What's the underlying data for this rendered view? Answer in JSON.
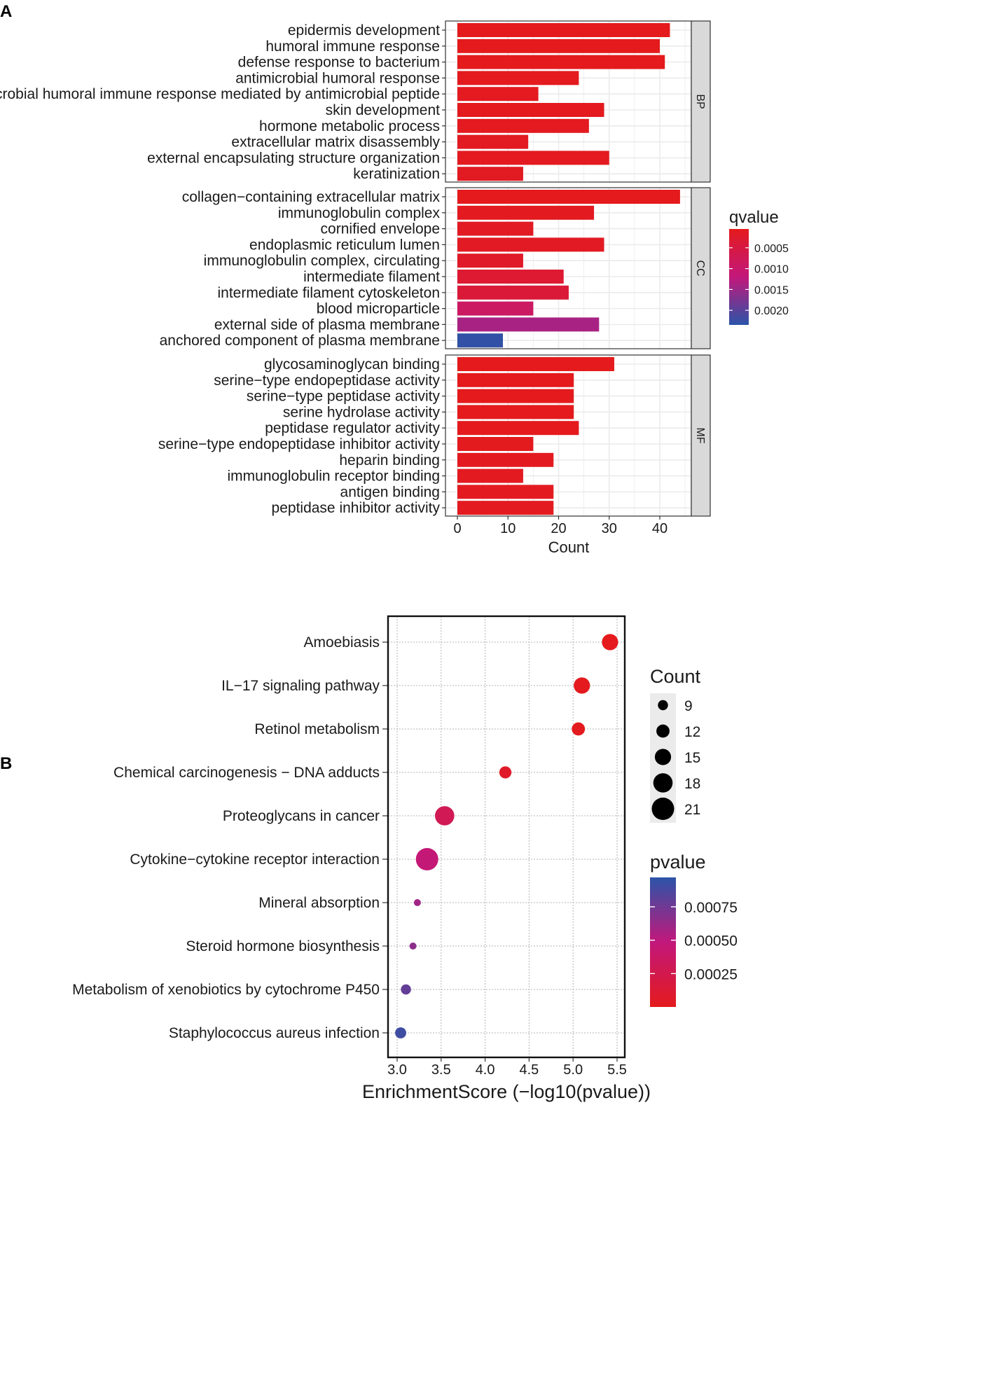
{
  "figure": {
    "panel_a_letter": "A",
    "panel_b_letter": "B"
  },
  "chart_data": [
    {
      "type": "bar",
      "orientation": "horizontal",
      "title": "",
      "xlabel": "Count",
      "ylabel": "",
      "xlim": [
        0,
        46
      ],
      "x_ticks": [
        0,
        10,
        20,
        30,
        40
      ],
      "grid": true,
      "color_by": "qvalue",
      "legend": {
        "title": "qvalue",
        "placement": "right",
        "ticks": [
          "0.0005",
          "0.0010",
          "0.0015",
          "0.0020"
        ],
        "tick_values": [
          0.0005,
          0.001,
          0.0015,
          0.002
        ],
        "range": [
          5e-05,
          0.00235
        ],
        "low_color": "#e41a1c",
        "mid_color": "#c2187b",
        "high_color": "#2b54a8"
      },
      "facets": [
        {
          "name": "BP",
          "categories": [
            "epidermis development",
            "humoral immune response",
            "defense response to bacterium",
            "antimicrobial humoral response",
            "antimicrobial humoral immune response mediated by antimicrobial peptide",
            "skin development",
            "hormone metabolic process",
            "extracellular matrix disassembly",
            "external encapsulating structure organization",
            "keratinization"
          ],
          "values": [
            42,
            40,
            41,
            24,
            16,
            29,
            26,
            14,
            30,
            13
          ],
          "qvalues": [
            5e-05,
            5e-05,
            5e-05,
            8e-05,
            0.0001,
            8e-05,
            0.0001,
            0.00012,
            0.0001,
            0.00012
          ]
        },
        {
          "name": "CC",
          "categories": [
            "collagen−containing extracellular matrix",
            "immunoglobulin complex",
            "cornified envelope",
            "endoplasmic reticulum lumen",
            "immunoglobulin complex, circulating",
            "intermediate filament",
            "intermediate filament cytoskeleton",
            "blood microparticle",
            "external side of plasma membrane",
            "anchored component of plasma membrane"
          ],
          "values": [
            44,
            27,
            15,
            29,
            13,
            21,
            22,
            15,
            28,
            9
          ],
          "qvalues": [
            5e-05,
            0.0001,
            0.00015,
            0.00015,
            0.0002,
            0.0003,
            0.0004,
            0.0009,
            0.0014,
            0.0023
          ]
        },
        {
          "name": "MF",
          "categories": [
            "glycosaminoglycan binding",
            "serine−type endopeptidase activity",
            "serine−type peptidase activity",
            "serine hydrolase activity",
            "peptidase regulator activity",
            "serine−type endopeptidase inhibitor activity",
            "heparin binding",
            "immunoglobulin receptor binding",
            "antigen binding",
            "peptidase inhibitor activity"
          ],
          "values": [
            31,
            23,
            23,
            23,
            24,
            15,
            19,
            13,
            19,
            19
          ],
          "qvalues": [
            5e-05,
            5e-05,
            5e-05,
            5e-05,
            6e-05,
            8e-05,
            0.0001,
            0.0001,
            0.0001,
            0.0001
          ]
        }
      ]
    },
    {
      "type": "scatter",
      "title": "",
      "xlabel": "EnrichmentScore (−log10(pvalue))",
      "ylabel": "",
      "xlim": [
        2.9,
        5.58
      ],
      "x_ticks": [
        "3.0",
        "3.5",
        "4.0",
        "4.5",
        "5.0",
        "5.5"
      ],
      "grid": true,
      "categories": [
        "Amoebiasis",
        "IL−17 signaling pathway",
        "Retinol metabolism",
        "Chemical carcinogenesis − DNA adducts",
        "Proteoglycans in cancer",
        "Cytokine−cytokine receptor interaction",
        "Mineral absorption",
        "Steroid hormone biosynthesis",
        "Metabolism of xenobiotics by cytochrome P450",
        "Staphylococcus aureus infection"
      ],
      "x": [
        5.42,
        5.1,
        5.06,
        4.23,
        3.54,
        3.34,
        3.23,
        3.18,
        3.1,
        3.04
      ],
      "count": [
        15,
        15,
        12,
        11,
        18,
        21,
        6,
        6,
        9,
        10
      ],
      "pvalue": [
        4e-06,
        8e-06,
        9e-06,
        6e-05,
        0.00029,
        0.00046,
        0.00059,
        0.00066,
        0.00079,
        0.00091
      ],
      "size_legend": {
        "title": "Count",
        "values": [
          9,
          12,
          15,
          18,
          21
        ],
        "labels": [
          "9",
          "12",
          "15",
          "18",
          "21"
        ]
      },
      "color_legend": {
        "title": "pvalue",
        "ticks": [
          "0.00025",
          "0.00050",
          "0.00075"
        ],
        "tick_values": [
          0.00025,
          0.0005,
          0.00075
        ],
        "range": [
          1e-07,
          0.00097
        ],
        "low_color": "#e41a1c",
        "mid_color": "#c2187b",
        "high_color": "#2b54a8"
      }
    }
  ]
}
